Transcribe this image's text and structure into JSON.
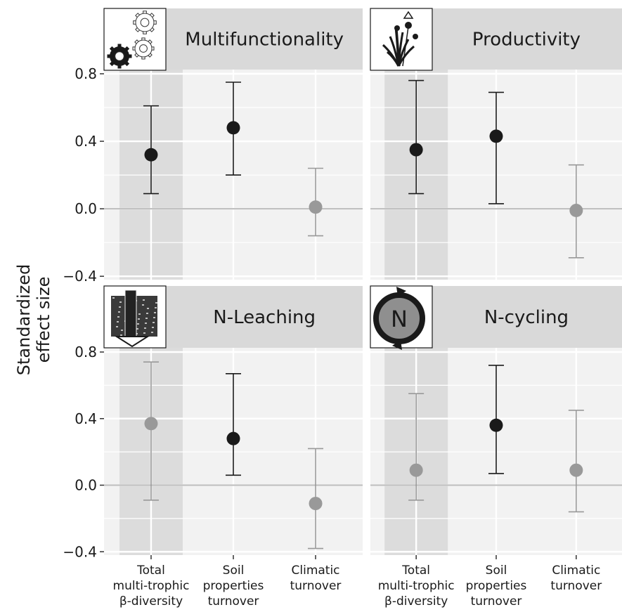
{
  "figure": {
    "ylabel_line1": "Standardized",
    "ylabel_line2": "effect size"
  },
  "chart_data": [
    {
      "type": "scatter",
      "title": "Multifunctionality",
      "icon": "gears-icon",
      "categories": [
        "Total multi-trophic β-diversity",
        "Soil properties turnover",
        "Climatic turnover"
      ],
      "values": [
        0.32,
        0.48,
        0.01
      ],
      "ci_lower": [
        0.09,
        0.2,
        -0.16
      ],
      "ci_upper": [
        0.61,
        0.75,
        0.24
      ],
      "significant": [
        true,
        true,
        false
      ],
      "ylabel": "Standardized effect size",
      "ylim": [
        -0.42,
        0.8
      ],
      "yticks": [
        -0.4,
        0.0,
        0.4,
        0.8
      ],
      "grid": true
    },
    {
      "type": "scatter",
      "title": "Productivity",
      "icon": "plant-icon",
      "categories": [
        "Total multi-trophic β-diversity",
        "Soil properties turnover",
        "Climatic turnover"
      ],
      "values": [
        0.35,
        0.43,
        -0.01
      ],
      "ci_lower": [
        0.09,
        0.03,
        -0.29
      ],
      "ci_upper": [
        0.76,
        0.69,
        0.26
      ],
      "significant": [
        true,
        true,
        false
      ],
      "ylabel": "Standardized effect size",
      "ylim": [
        -0.42,
        0.8
      ],
      "yticks": [
        -0.4,
        0.0,
        0.4,
        0.8
      ],
      "grid": true
    },
    {
      "type": "scatter",
      "title": "N-Leaching",
      "icon": "soil-leaching-icon",
      "categories": [
        "Total multi-trophic β-diversity",
        "Soil properties turnover",
        "Climatic turnover"
      ],
      "values": [
        0.37,
        0.28,
        -0.11
      ],
      "ci_lower": [
        -0.09,
        0.06,
        -0.38
      ],
      "ci_upper": [
        0.74,
        0.67,
        0.22
      ],
      "significant": [
        false,
        true,
        false
      ],
      "ylabel": "Standardized effect size",
      "ylim": [
        -0.42,
        0.8
      ],
      "yticks": [
        -0.4,
        0.0,
        0.4,
        0.8
      ],
      "grid": true
    },
    {
      "type": "scatter",
      "title": "N-cycling",
      "icon": "nitrogen-cycle-icon",
      "categories": [
        "Total multi-trophic β-diversity",
        "Soil properties turnover",
        "Climatic turnover"
      ],
      "values": [
        0.09,
        0.36,
        0.09
      ],
      "ci_lower": [
        -0.09,
        0.07,
        -0.16
      ],
      "ci_upper": [
        0.55,
        0.72,
        0.45
      ],
      "significant": [
        false,
        true,
        false
      ],
      "ylabel": "Standardized effect size",
      "ylim": [
        -0.42,
        0.8
      ],
      "yticks": [
        -0.4,
        0.0,
        0.4,
        0.8
      ],
      "grid": true
    }
  ],
  "xaxis": {
    "tick_labels": [
      [
        "Total",
        "multi-trophic",
        "β-diversity"
      ],
      [
        "Soil",
        "properties",
        "turnover"
      ],
      [
        "Climatic",
        "turnover"
      ]
    ]
  },
  "ytick_labels": [
    "−0.4",
    "0.0",
    "0.4",
    "0.8"
  ],
  "colors": {
    "significant": "#1a1a1a",
    "nonsignificant": "#999999",
    "panel_bg": "#f2f2f2",
    "strip_bg": "#d9d9d9",
    "highlight_band": "#dcdcdc",
    "gridline": "#ffffff",
    "zero_line": "#bcbcbc"
  }
}
